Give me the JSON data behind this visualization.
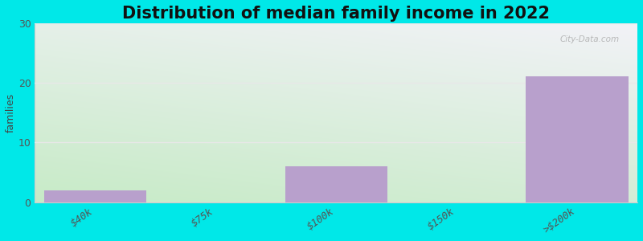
{
  "title": "Distribution of median family income in 2022",
  "categories": [
    "$40k",
    "$75k",
    "$100k",
    "$150k",
    ">$200k"
  ],
  "values": [
    2,
    0,
    6,
    0,
    21
  ],
  "bar_color": "#b8a0cc",
  "background_color": "#00e8e8",
  "ylabel": "families",
  "ylim": [
    0,
    30
  ],
  "yticks": [
    0,
    10,
    20,
    30
  ],
  "title_fontsize": 15,
  "subtitle_fontsize": 10.5,
  "subtitle_color": "#707070",
  "watermark": "City-Data.com",
  "grid_color": "#e8e8e8",
  "tick_label_color": "#555555",
  "tick_label_fontsize": 9,
  "grad_bottom_left": "#c8eac8",
  "grad_top_right": "#f2f2f8"
}
